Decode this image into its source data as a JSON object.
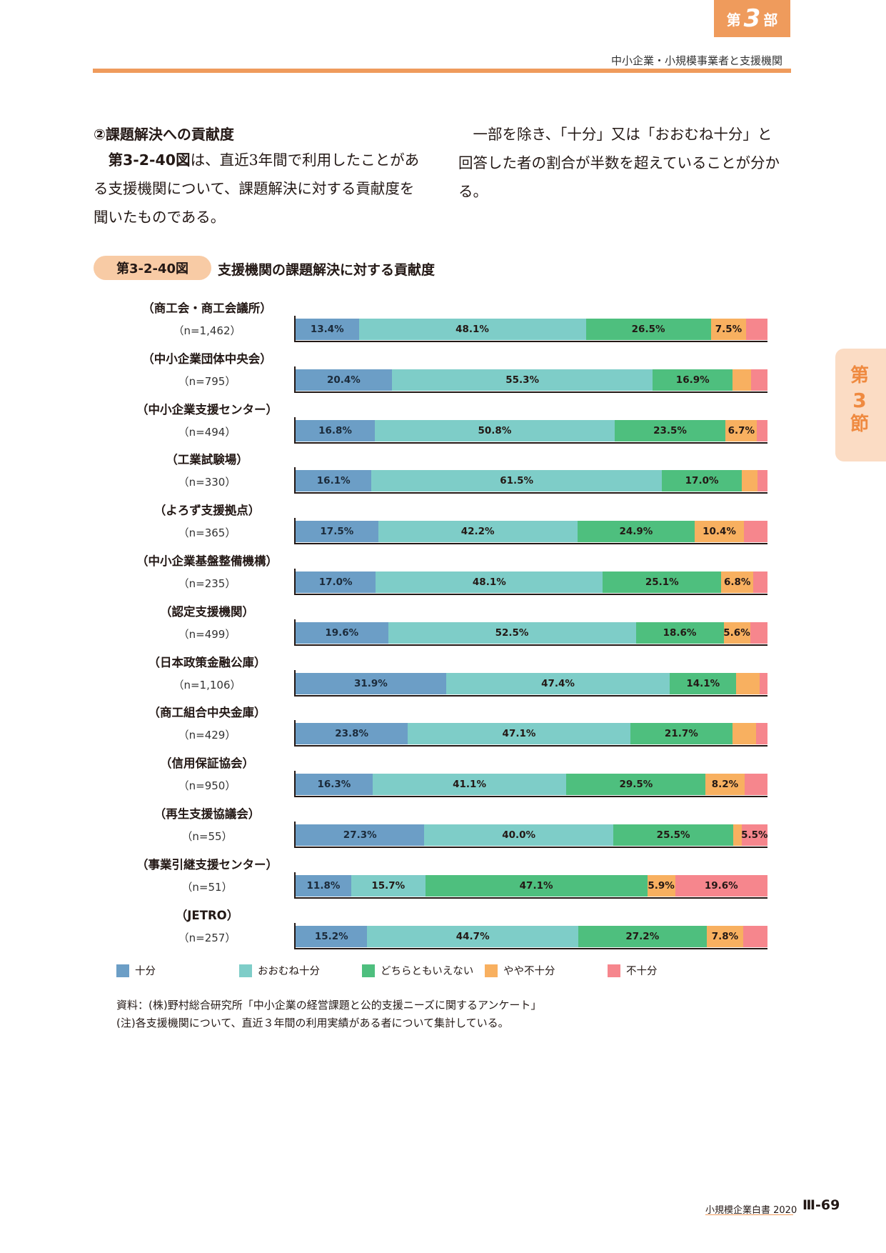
{
  "header": {
    "part_pre": "第",
    "part_num": "3",
    "part_post": "部",
    "running_head": "中小企業・小規模事業者と支援機関",
    "section_pre": "第",
    "section_num": "3",
    "section_post": "節"
  },
  "body": {
    "heading": "②課題解決への貢献度",
    "left_ref": "第3-2-40図",
    "left_line1_rest": "は、直近3年間で利用したことがあ",
    "left_line2": "る支援機関について、課題解決に対する貢献度を",
    "left_line3": "聞いたものである。",
    "right_line1": "一部を除き、「十分」又は「おおむね十分」と",
    "right_line2": "回答した者の割合が半数を超えていることが分か",
    "right_line3": "る。"
  },
  "figure": {
    "label": "第3-2-40図",
    "title": "支援機関の課題解決に対する貢献度"
  },
  "chart_data": {
    "type": "bar",
    "orientation": "horizontal",
    "stacked": true,
    "percent": true,
    "xlim": [
      0,
      100
    ],
    "categories": [
      "（商工会・商工会議所）",
      "（中小企業団体中央会）",
      "（中小企業支援センター）",
      "（工業試験場）",
      "（よろず支援拠点）",
      "（中小企業基盤整備機構）",
      "（認定支援機関）",
      "（日本政策金融公庫）",
      "（商工組合中央金庫）",
      "（信用保証協会）",
      "（再生支援協議会）",
      "（事業引継支援センター）",
      "（JETRO）"
    ],
    "n_labels": [
      "（n=1,462）",
      "（n=795）",
      "（n=494）",
      "（n=330）",
      "（n=365）",
      "（n=235）",
      "（n=499）",
      "（n=1,106）",
      "（n=429）",
      "（n=950）",
      "（n=55）",
      "（n=51）",
      "（n=257）"
    ],
    "series": [
      {
        "name": "十分",
        "color": "#6c9ec6",
        "values": [
          13.4,
          20.4,
          16.8,
          16.1,
          17.5,
          17.0,
          19.6,
          31.9,
          23.8,
          16.3,
          27.3,
          11.8,
          15.2
        ]
      },
      {
        "name": "おおむね十分",
        "color": "#7ecdc8",
        "values": [
          48.1,
          55.3,
          50.8,
          61.5,
          42.2,
          48.1,
          52.5,
          47.4,
          47.1,
          41.1,
          40.0,
          15.7,
          44.7
        ]
      },
      {
        "name": "どちらともいえない",
        "color": "#4ebf7e",
        "values": [
          26.5,
          16.9,
          23.5,
          17.0,
          24.9,
          25.1,
          18.6,
          14.1,
          21.7,
          29.5,
          25.5,
          47.1,
          27.2
        ]
      },
      {
        "name": "やや不十分",
        "color": "#f8b060",
        "values": [
          7.5,
          3.9,
          6.7,
          3.3,
          10.4,
          6.8,
          5.6,
          5.0,
          5.0,
          8.2,
          1.7,
          5.9,
          7.8
        ]
      },
      {
        "name": "不十分",
        "color": "#f6868d",
        "values": [
          4.5,
          3.5,
          2.2,
          2.1,
          5.0,
          3.0,
          3.7,
          1.6,
          2.4,
          4.9,
          5.5,
          19.6,
          5.1
        ]
      }
    ],
    "shown_labels": [
      [
        "13.4%",
        "48.1%",
        "26.5%",
        "7.5%",
        ""
      ],
      [
        "20.4%",
        "55.3%",
        "16.9%",
        "",
        ""
      ],
      [
        "16.8%",
        "50.8%",
        "23.5%",
        "6.7%",
        ""
      ],
      [
        "16.1%",
        "61.5%",
        "17.0%",
        "",
        ""
      ],
      [
        "17.5%",
        "42.2%",
        "24.9%",
        "10.4%",
        ""
      ],
      [
        "17.0%",
        "48.1%",
        "25.1%",
        "6.8%",
        ""
      ],
      [
        "19.6%",
        "52.5%",
        "18.6%",
        "5.6%",
        ""
      ],
      [
        "31.9%",
        "47.4%",
        "14.1%",
        "",
        ""
      ],
      [
        "23.8%",
        "47.1%",
        "21.7%",
        "",
        ""
      ],
      [
        "16.3%",
        "41.1%",
        "29.5%",
        "8.2%",
        ""
      ],
      [
        "27.3%",
        "40.0%",
        "25.5%",
        "",
        "5.5%"
      ],
      [
        "11.8%",
        "15.7%",
        "47.1%",
        "5.9%",
        "19.6%"
      ],
      [
        "15.2%",
        "44.7%",
        "27.2%",
        "7.8%",
        ""
      ]
    ],
    "legend_position": "bottom"
  },
  "notes": {
    "source": "資料：(株)野村総合研究所「中小企業の経営課題と公的支援ニーズに関するアンケート」",
    "note": "(注)各支援機関について、直近３年間の利用実績がある者について集計している。"
  },
  "footer": {
    "book": "小規模企業白書  2020",
    "page": "Ⅲ-69"
  }
}
